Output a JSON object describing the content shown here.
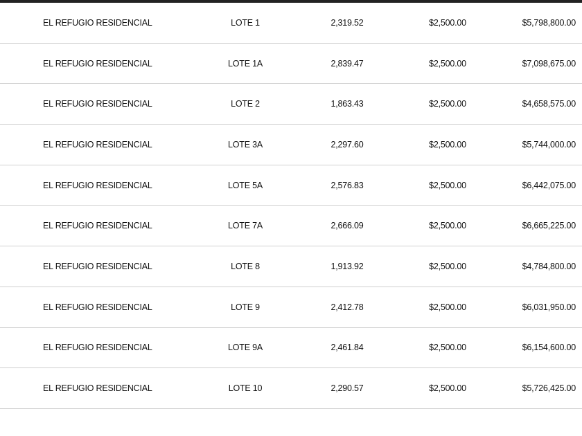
{
  "table": {
    "rows": [
      {
        "desarrollo": "EL REFUGIO RESIDENCIAL",
        "lote": "LOTE 1",
        "superficie": "2,319.52",
        "precio_m2": "$2,500.00",
        "total": "$5,798,800.00"
      },
      {
        "desarrollo": "EL REFUGIO RESIDENCIAL",
        "lote": "LOTE 1A",
        "superficie": "2,839.47",
        "precio_m2": "$2,500.00",
        "total": "$7,098,675.00"
      },
      {
        "desarrollo": "EL REFUGIO RESIDENCIAL",
        "lote": "LOTE 2",
        "superficie": "1,863.43",
        "precio_m2": "$2,500.00",
        "total": "$4,658,575.00"
      },
      {
        "desarrollo": "EL REFUGIO RESIDENCIAL",
        "lote": "LOTE 3A",
        "superficie": "2,297.60",
        "precio_m2": "$2,500.00",
        "total": "$5,744,000.00"
      },
      {
        "desarrollo": "EL REFUGIO RESIDENCIAL",
        "lote": "LOTE 5A",
        "superficie": "2,576.83",
        "precio_m2": "$2,500.00",
        "total": "$6,442,075.00"
      },
      {
        "desarrollo": "EL REFUGIO RESIDENCIAL",
        "lote": "LOTE 7A",
        "superficie": "2,666.09",
        "precio_m2": "$2,500.00",
        "total": "$6,665,225.00"
      },
      {
        "desarrollo": "EL REFUGIO RESIDENCIAL",
        "lote": "LOTE 8",
        "superficie": "1,913.92",
        "precio_m2": "$2,500.00",
        "total": "$4,784,800.00"
      },
      {
        "desarrollo": "EL REFUGIO RESIDENCIAL",
        "lote": "LOTE 9",
        "superficie": "2,412.78",
        "precio_m2": "$2,500.00",
        "total": "$6,031,950.00"
      },
      {
        "desarrollo": "EL REFUGIO RESIDENCIAL",
        "lote": "LOTE 9A",
        "superficie": "2,461.84",
        "precio_m2": "$2,500.00",
        "total": "$6,154,600.00"
      },
      {
        "desarrollo": "EL REFUGIO RESIDENCIAL",
        "lote": "LOTE 10",
        "superficie": "2,290.57",
        "precio_m2": "$2,500.00",
        "total": "$5,726,425.00"
      }
    ]
  }
}
